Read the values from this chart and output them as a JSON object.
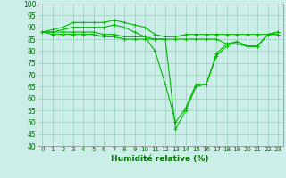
{
  "title": "",
  "xlabel": "Humidité relative (%)",
  "ylabel": "",
  "bg_color": "#cceee8",
  "grid_color": "#99ccbb",
  "line_color": "#00bb00",
  "xlim": [
    -0.5,
    23.5
  ],
  "ylim": [
    40,
    100
  ],
  "yticks": [
    40,
    45,
    50,
    55,
    60,
    65,
    70,
    75,
    80,
    85,
    90,
    95,
    100
  ],
  "xticks": [
    0,
    1,
    2,
    3,
    4,
    5,
    6,
    7,
    8,
    9,
    10,
    11,
    12,
    13,
    14,
    15,
    16,
    17,
    18,
    19,
    20,
    21,
    22,
    23
  ],
  "series": [
    [
      88,
      89,
      90,
      92,
      92,
      92,
      92,
      93,
      92,
      91,
      90,
      87,
      86,
      86,
      87,
      87,
      87,
      87,
      87,
      87,
      87,
      87,
      87,
      88
    ],
    [
      88,
      88,
      89,
      90,
      90,
      90,
      90,
      91,
      90,
      88,
      86,
      80,
      66,
      50,
      56,
      66,
      66,
      78,
      82,
      84,
      82,
      82,
      87,
      88
    ],
    [
      88,
      88,
      88,
      88,
      88,
      88,
      87,
      87,
      86,
      86,
      86,
      85,
      85,
      47,
      55,
      65,
      66,
      79,
      83,
      84,
      82,
      82,
      87,
      87
    ],
    [
      88,
      87,
      87,
      87,
      87,
      87,
      86,
      86,
      85,
      85,
      85,
      85,
      85,
      85,
      85,
      85,
      85,
      85,
      83,
      83,
      82,
      82,
      87,
      87
    ]
  ]
}
